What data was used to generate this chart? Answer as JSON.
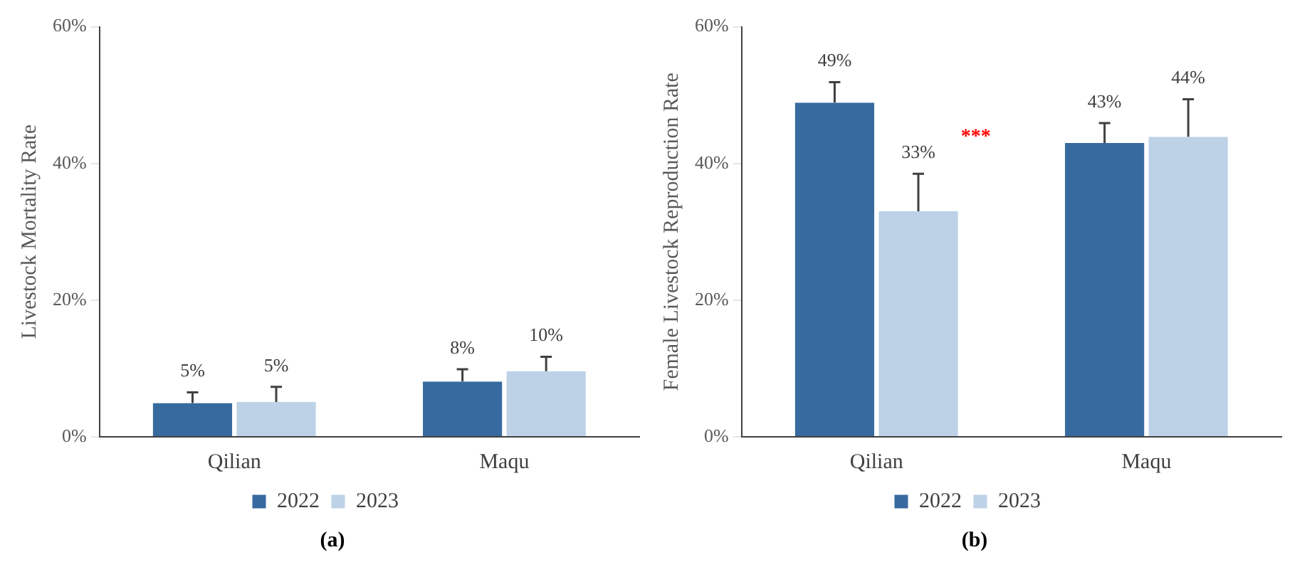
{
  "chart_data": [
    {
      "type": "bar",
      "title": "(a)",
      "ylabel": "Livestock Mortality Rate",
      "categories": [
        "Qilian",
        "Maqu"
      ],
      "ylim": [
        0,
        60
      ],
      "yticks": [
        {
          "value": 0,
          "label": "0%"
        },
        {
          "value": 20,
          "label": "20%"
        },
        {
          "value": 40,
          "label": "40%"
        },
        {
          "value": 60,
          "label": "60%"
        }
      ],
      "grid": false,
      "legend": "bottom",
      "series": [
        {
          "name": "2022",
          "color": "#376a9f",
          "values": [
            4.95,
            8.1
          ],
          "errors": [
            [
              4.95,
              6.5
            ],
            [
              8.1,
              9.9
            ]
          ],
          "value_labels": [
            "5%",
            "8%"
          ]
        },
        {
          "name": "2023",
          "color": "#bdd2e7",
          "values": [
            5.1,
            9.6
          ],
          "errors": [
            [
              5.1,
              7.3
            ],
            [
              9.6,
              11.7
            ]
          ],
          "value_labels": [
            "5%",
            "10%"
          ]
        }
      ]
    },
    {
      "type": "bar",
      "title": "(b)",
      "ylabel": "Female Livestock Reproduction Rate",
      "categories": [
        "Qilian",
        "Maqu"
      ],
      "ylim": [
        0,
        60
      ],
      "yticks": [
        {
          "value": 0,
          "label": "0%"
        },
        {
          "value": 20,
          "label": "20%"
        },
        {
          "value": 40,
          "label": "40%"
        },
        {
          "value": 60,
          "label": "60%"
        }
      ],
      "grid": false,
      "legend": "bottom",
      "annotations": [
        "***"
      ],
      "series": [
        {
          "name": "2022",
          "color": "#376a9f",
          "values": [
            48.9,
            43.0
          ],
          "errors": [
            [
              48.9,
              51.9
            ],
            [
              43.0,
              45.9
            ]
          ],
          "value_labels": [
            "49%",
            "43%"
          ]
        },
        {
          "name": "2023",
          "color": "#bdd2e7",
          "values": [
            33.0,
            43.9
          ],
          "errors": [
            [
              33.0,
              38.5
            ],
            [
              43.9,
              49.4
            ]
          ],
          "value_labels": [
            "33%",
            "44%"
          ]
        }
      ]
    }
  ]
}
